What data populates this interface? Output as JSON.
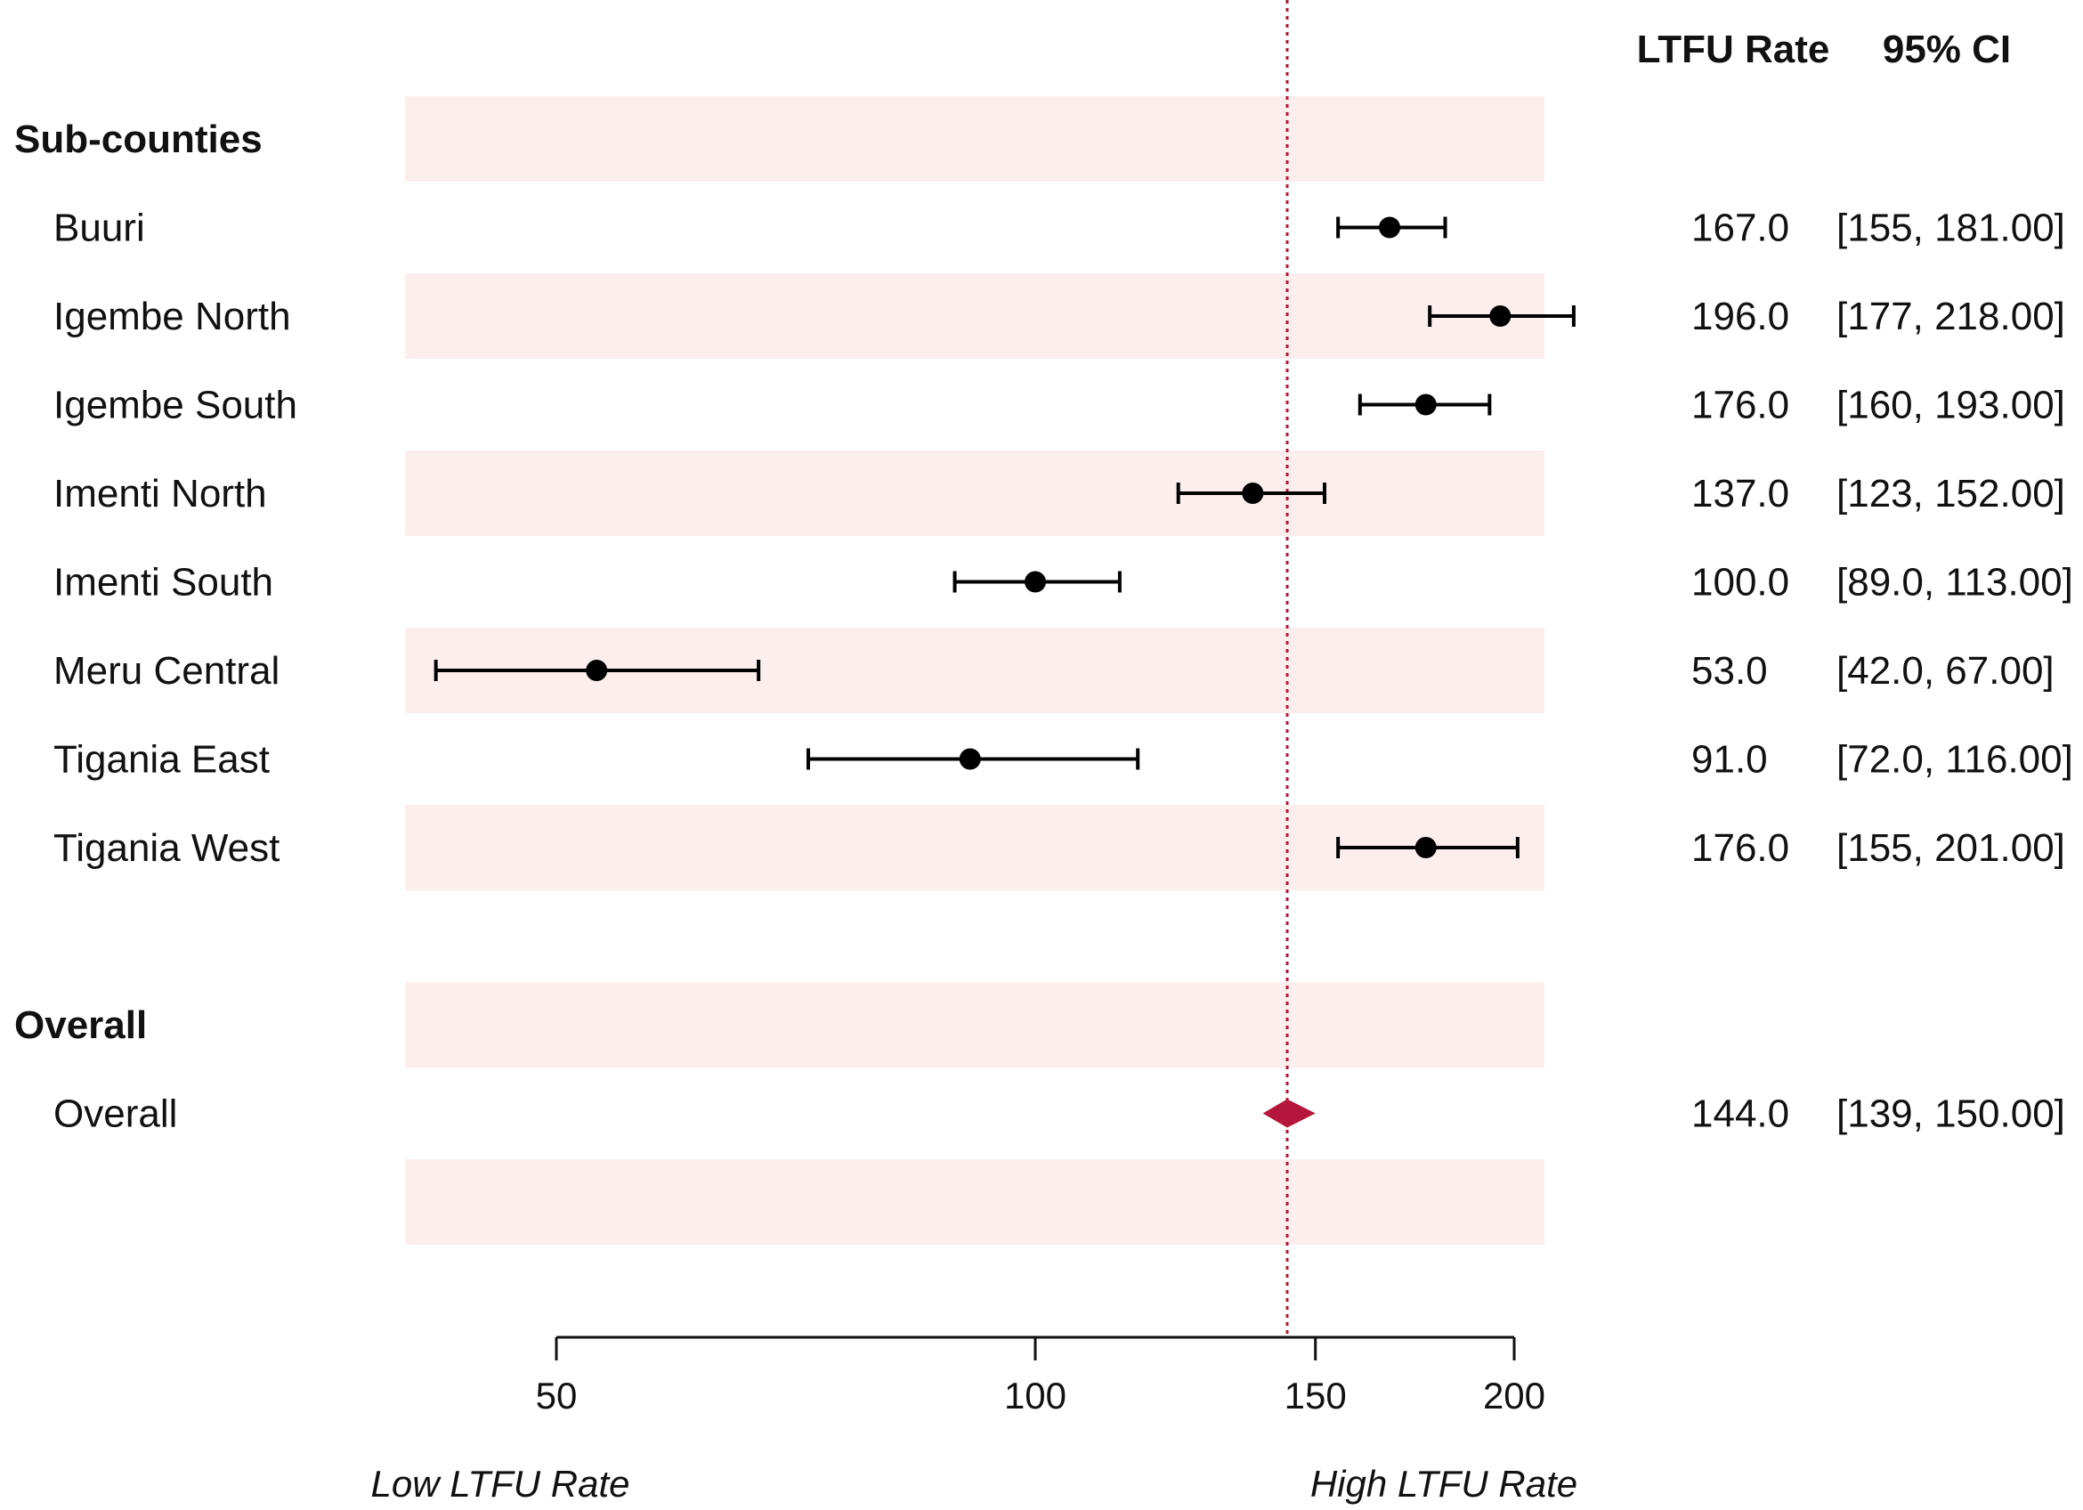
{
  "chart_data": {
    "type": "forest",
    "columns": {
      "rate": "LTFU Rate",
      "ci": "95% CI"
    },
    "groups": [
      {
        "title": "Sub-counties",
        "rows": [
          {
            "label": "Buuri",
            "estimate": 167,
            "lower": 155,
            "upper": 181,
            "rate_text": "167.0",
            "ci_text": "[155,  181.00]"
          },
          {
            "label": "Igembe North",
            "estimate": 196,
            "lower": 177,
            "upper": 218,
            "rate_text": "196.0",
            "ci_text": "[177,  218.00]"
          },
          {
            "label": "Igembe South",
            "estimate": 176,
            "lower": 160,
            "upper": 193,
            "rate_text": "176.0",
            "ci_text": "[160,  193.00]"
          },
          {
            "label": "Imenti North",
            "estimate": 137,
            "lower": 123,
            "upper": 152,
            "rate_text": "137.0",
            "ci_text": "[123,  152.00]"
          },
          {
            "label": "Imenti South",
            "estimate": 100,
            "lower": 89,
            "upper": 113,
            "rate_text": "100.0",
            "ci_text": "[89.0, 113.00]"
          },
          {
            "label": "Meru Central",
            "estimate": 53,
            "lower": 42,
            "upper": 67,
            "rate_text": "53.0",
            "ci_text": "[42.0, 67.00]"
          },
          {
            "label": "Tigania East",
            "estimate": 91,
            "lower": 72,
            "upper": 116,
            "rate_text": "91.0",
            "ci_text": "[72.0, 116.00]"
          },
          {
            "label": "Tigania West",
            "estimate": 176,
            "lower": 155,
            "upper": 201,
            "rate_text": "176.0",
            "ci_text": "[155,  201.00]"
          }
        ]
      },
      {
        "title": "Overall",
        "rows": [
          {
            "label": "Overall",
            "estimate": 144,
            "lower": 139,
            "upper": 150,
            "rate_text": "144.0",
            "ci_text": "[139,  150.00]",
            "summary": true
          }
        ]
      }
    ],
    "reference_line": 144,
    "x_axis": {
      "scale": "log",
      "ticks": [
        50,
        100,
        150,
        200
      ],
      "tick_labels": [
        "50",
        "100",
        "150",
        "200"
      ],
      "range": [
        38,
        210
      ]
    },
    "direction_labels": {
      "low": "Low LTFU Rate",
      "high": "High LTFU Rate"
    },
    "colors": {
      "point": "#000000",
      "summary": "#b5163b",
      "reference_line": "#b5163b",
      "row_band": "#fdeeee"
    }
  }
}
